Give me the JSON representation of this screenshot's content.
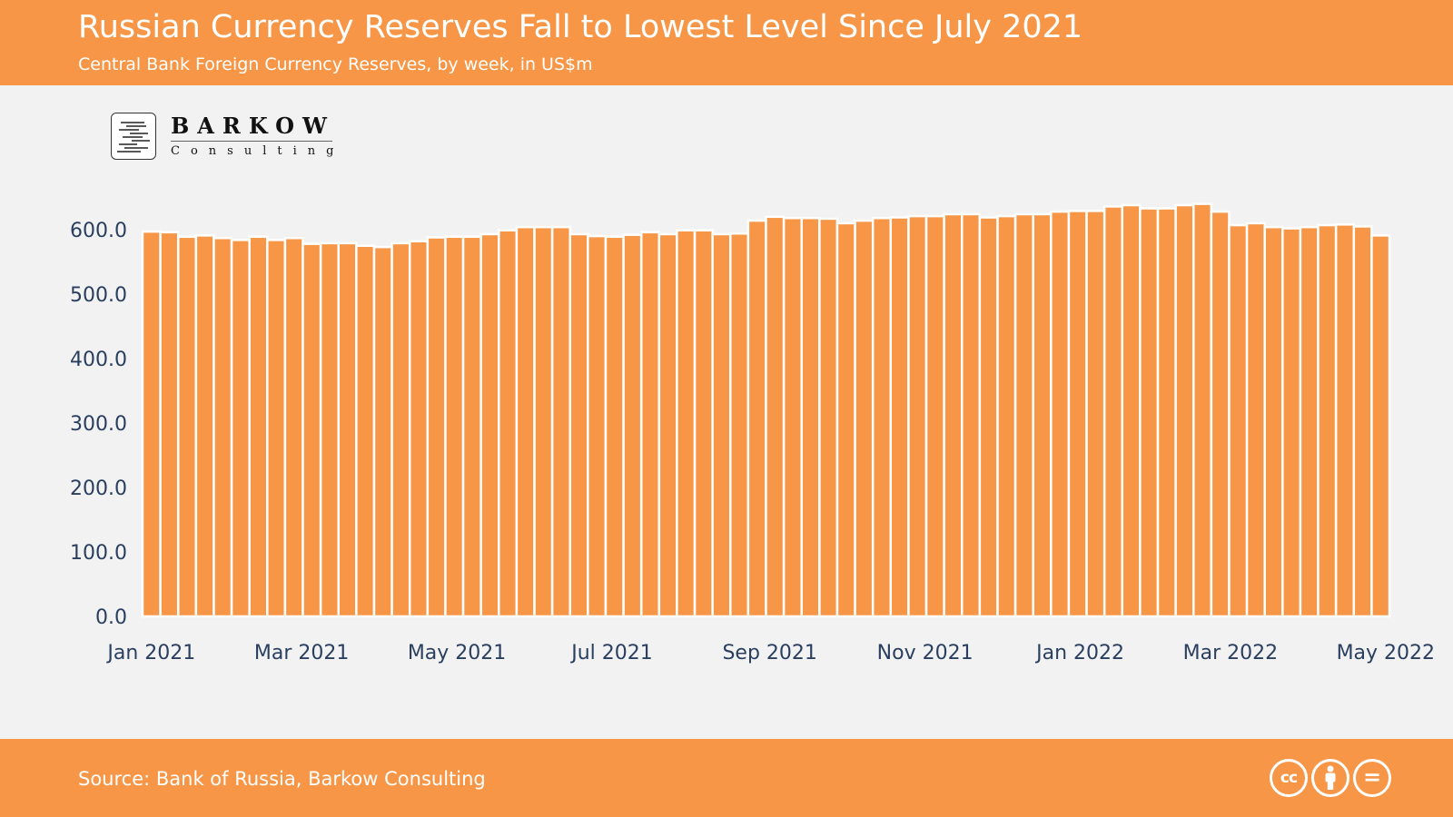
{
  "header": {
    "title": "Russian Currency Reserves Fall to Lowest Level Since July 2021",
    "subtitle": "Central Bank Foreign Currency Reserves, by week, in US$m"
  },
  "logo": {
    "name": "BARKOW",
    "tagline": "Consulting"
  },
  "footer": {
    "source": "Source: Bank of Russia, Barkow Consulting",
    "license_icons": [
      "cc-icon",
      "attribution-icon",
      "no-derivatives-icon"
    ],
    "cc_text": "cc",
    "nd_text": "="
  },
  "colors": {
    "accent": "#f79646",
    "bar": "#f79646",
    "bar_outline": "#ffffff",
    "background": "#f2f2f3",
    "tick_text": "#2a3f5f"
  },
  "chart_data": {
    "type": "bar",
    "title": "",
    "xlabel": "",
    "ylabel": "",
    "ylim": [
      0,
      600
    ],
    "y_ticks": [
      "0.0",
      "100.0",
      "200.0",
      "300.0",
      "400.0",
      "500.0",
      "600.0"
    ],
    "x_tick_labels": [
      "Jan 2021",
      "Mar 2021",
      "May 2021",
      "Jul 2021",
      "Sep 2021",
      "Nov 2021",
      "Jan 2022",
      "Mar 2022",
      "May 2022"
    ],
    "grid": false,
    "x": [
      "2021-01-01",
      "2021-01-08",
      "2021-01-15",
      "2021-01-22",
      "2021-01-29",
      "2021-02-05",
      "2021-02-12",
      "2021-02-19",
      "2021-02-26",
      "2021-03-05",
      "2021-03-12",
      "2021-03-19",
      "2021-03-26",
      "2021-04-02",
      "2021-04-09",
      "2021-04-16",
      "2021-04-23",
      "2021-04-30",
      "2021-05-07",
      "2021-05-14",
      "2021-05-21",
      "2021-05-28",
      "2021-06-04",
      "2021-06-11",
      "2021-06-18",
      "2021-06-25",
      "2021-07-02",
      "2021-07-09",
      "2021-07-16",
      "2021-07-23",
      "2021-07-30",
      "2021-08-06",
      "2021-08-13",
      "2021-08-20",
      "2021-08-27",
      "2021-09-03",
      "2021-09-10",
      "2021-09-17",
      "2021-09-24",
      "2021-10-01",
      "2021-10-08",
      "2021-10-15",
      "2021-10-22",
      "2021-10-29",
      "2021-11-05",
      "2021-11-12",
      "2021-11-19",
      "2021-11-26",
      "2021-12-03",
      "2021-12-10",
      "2021-12-17",
      "2021-12-24",
      "2021-12-31",
      "2022-01-07",
      "2022-01-14",
      "2022-01-21",
      "2022-01-28",
      "2022-02-04",
      "2022-02-11",
      "2022-02-18",
      "2022-02-25",
      "2022-03-04",
      "2022-03-11",
      "2022-03-18",
      "2022-03-25",
      "2022-04-01",
      "2022-04-08",
      "2022-04-15",
      "2022-04-22",
      "2022-04-29"
    ],
    "values": [
      597,
      596,
      589,
      591,
      587,
      584,
      589,
      584,
      587,
      578,
      579,
      579,
      575,
      573,
      579,
      582,
      588,
      589,
      589,
      593,
      599,
      604,
      604,
      604,
      593,
      590,
      589,
      592,
      596,
      593,
      599,
      599,
      593,
      594,
      614,
      620,
      618,
      618,
      617,
      610,
      614,
      618,
      619,
      621,
      621,
      624,
      624,
      619,
      621,
      624,
      624,
      628,
      629,
      629,
      636,
      638,
      633,
      633,
      638,
      640,
      628,
      607,
      610,
      604,
      602,
      604,
      607,
      608,
      605,
      591
    ]
  }
}
